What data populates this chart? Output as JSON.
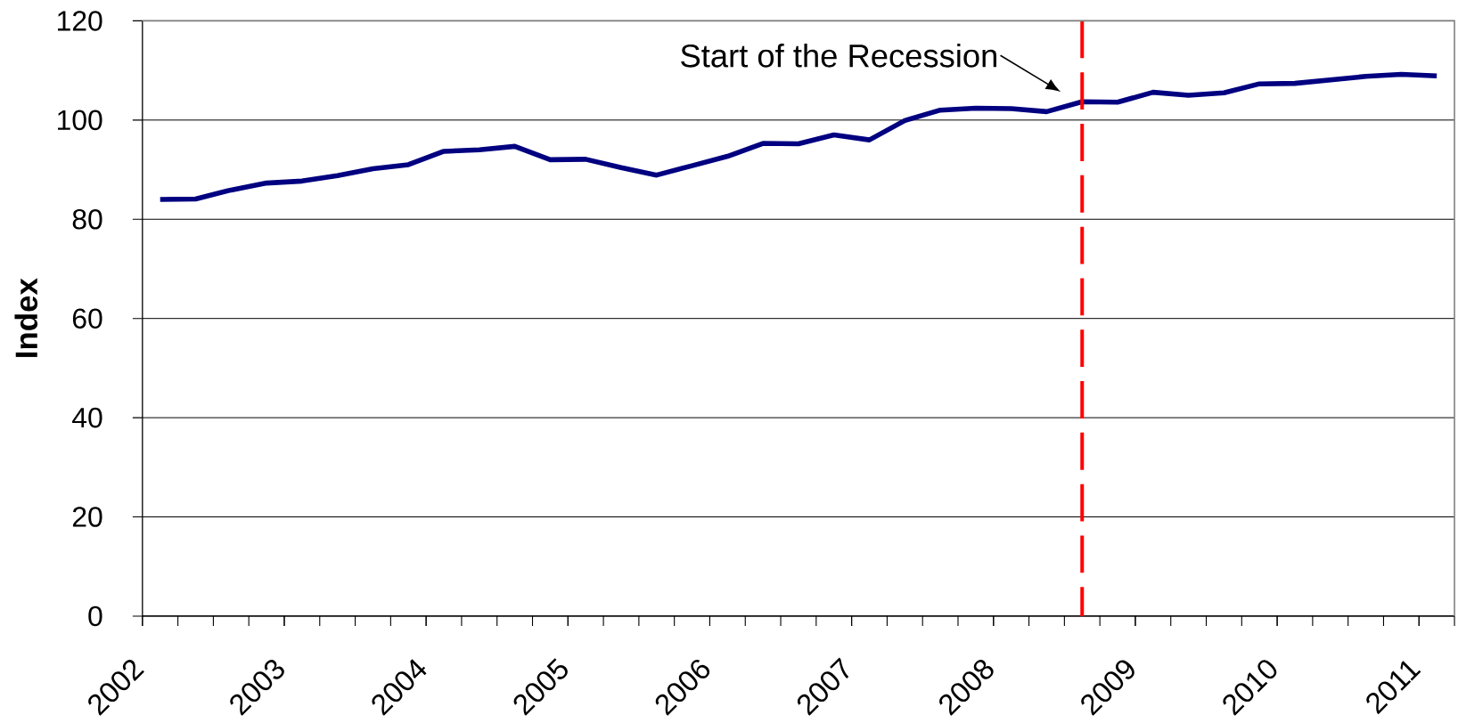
{
  "chart_data": {
    "type": "line",
    "ylabel": "Index",
    "x": [
      2002.125,
      2002.375,
      2002.625,
      2002.875,
      2003.125,
      2003.375,
      2003.625,
      2003.875,
      2004.125,
      2004.375,
      2004.625,
      2004.875,
      2005.125,
      2005.375,
      2005.625,
      2005.875,
      2006.125,
      2006.375,
      2006.625,
      2006.875,
      2007.125,
      2007.375,
      2007.625,
      2007.875,
      2008.125,
      2008.375,
      2008.625,
      2008.875,
      2009.125,
      2009.375,
      2009.625,
      2009.875,
      2010.125,
      2010.375,
      2010.625,
      2010.875,
      2011.125
    ],
    "series": [
      {
        "color": "#000080",
        "values": [
          84.0,
          84.1,
          85.9,
          87.3,
          87.7,
          88.8,
          90.2,
          91.0,
          93.7,
          94.0,
          94.7,
          92.0,
          92.1,
          90.4,
          88.9,
          90.8,
          92.7,
          95.3,
          95.2,
          97.0,
          96.0,
          99.9,
          102.0,
          102.4,
          102.3,
          101.7,
          103.7,
          103.6,
          105.6,
          105.0,
          105.5,
          107.3,
          107.4,
          108.1,
          108.8,
          109.2,
          108.9
        ]
      }
    ],
    "xlim": [
      2002,
      2011.25
    ],
    "ylim": [
      0,
      120
    ],
    "xticks": [
      2002,
      2003,
      2004,
      2005,
      2006,
      2007,
      2008,
      2009,
      2010,
      2011
    ],
    "yticks": [
      0,
      20,
      40,
      60,
      80,
      100,
      120
    ],
    "grid": "y",
    "ref_lines": [
      {
        "axis": "x",
        "value": 2008.625,
        "label": "Start of the Recession",
        "color": "#ff0000",
        "line_style": "dashed"
      }
    ]
  }
}
